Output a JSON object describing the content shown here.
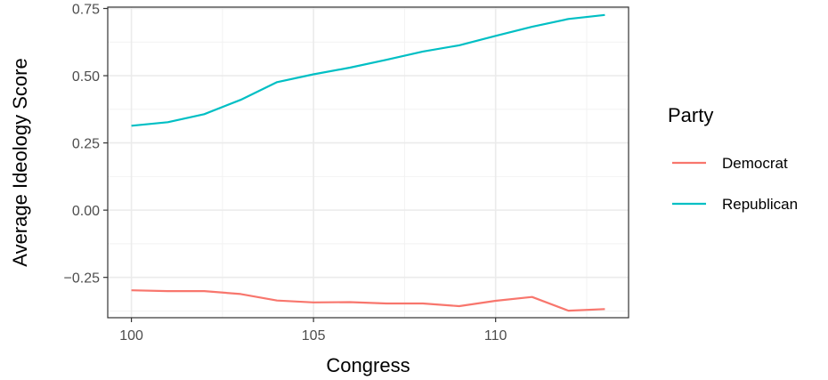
{
  "chart_data": {
    "type": "line",
    "xlabel": "Congress",
    "ylabel": "Average Ideology Score",
    "xlim": [
      99.35,
      113.65
    ],
    "ylim": [
      -0.4,
      0.755
    ],
    "x_ticks": [
      100,
      105,
      110
    ],
    "x_tick_labels": [
      "100",
      "105",
      "110"
    ],
    "y_ticks": [
      -0.25,
      0,
      0.25,
      0.5,
      0.75
    ],
    "y_tick_labels": [
      "−0.25",
      "0.00",
      "0.25",
      "0.50",
      "0.75"
    ],
    "grid": true,
    "legend_title": "Party",
    "legend_position": "right",
    "x": [
      100,
      101,
      102,
      103,
      104,
      105,
      106,
      107,
      108,
      109,
      110,
      111,
      112,
      113
    ],
    "series": [
      {
        "name": "Democrat",
        "color": "#F8766D",
        "values": [
          -0.298,
          -0.301,
          -0.301,
          -0.312,
          -0.336,
          -0.343,
          -0.342,
          -0.347,
          -0.347,
          -0.357,
          -0.337,
          -0.323,
          -0.374,
          -0.368
        ]
      },
      {
        "name": "Republican",
        "color": "#00BFC4",
        "values": [
          0.314,
          0.327,
          0.357,
          0.41,
          0.476,
          0.505,
          0.53,
          0.559,
          0.59,
          0.613,
          0.648,
          0.682,
          0.711,
          0.726
        ]
      }
    ]
  }
}
